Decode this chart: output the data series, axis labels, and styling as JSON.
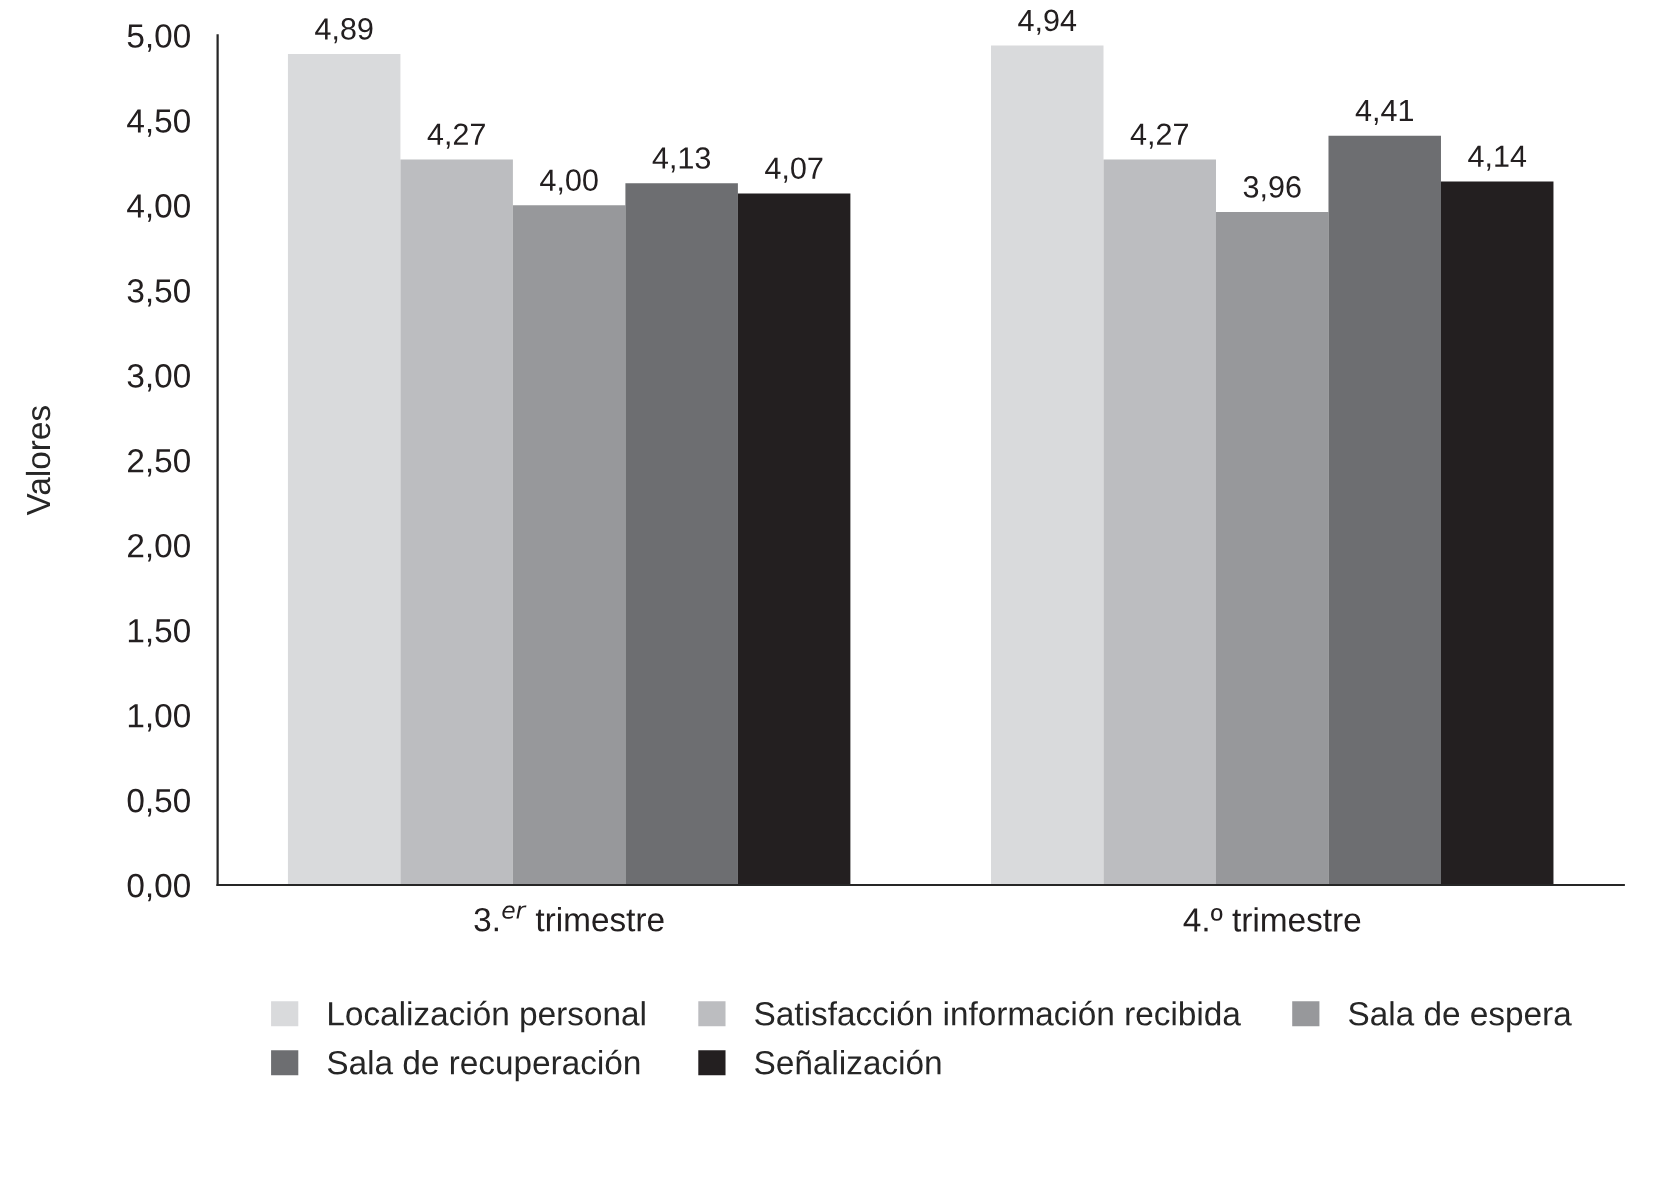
{
  "chart_data": {
    "type": "bar",
    "ylabel": "Valores",
    "categories": [
      "3.$^{er}$ trimestre",
      "4.º trimestre"
    ],
    "series": [
      {
        "name": "Localización personal",
        "color": "#d9dadc",
        "values": [
          4.89,
          4.94
        ],
        "value_labels": [
          "4,89",
          "4,94"
        ]
      },
      {
        "name": "Satisfacción información recibida",
        "color": "#bcbdc0",
        "values": [
          4.27,
          4.27
        ],
        "value_labels": [
          "4,27",
          "4,27"
        ]
      },
      {
        "name": "Sala de espera",
        "color": "#97989b",
        "values": [
          4.0,
          3.96
        ],
        "value_labels": [
          "4,00",
          "3,96"
        ]
      },
      {
        "name": "Sala de recuperación",
        "color": "#6d6e71",
        "values": [
          4.13,
          4.41
        ],
        "value_labels": [
          "4,13",
          "4,41"
        ]
      },
      {
        "name": "Señalización",
        "color": "#231f20",
        "values": [
          4.07,
          4.14
        ],
        "value_labels": [
          "4,07",
          "4,14"
        ]
      }
    ],
    "ylim": [
      0,
      5
    ],
    "yticks": [
      {
        "value": 0,
        "label": "0,00"
      },
      {
        "value": 0.5,
        "label": "0,50"
      },
      {
        "value": 1,
        "label": "1,00"
      },
      {
        "value": 1.5,
        "label": "1,50"
      },
      {
        "value": 2,
        "label": "2,00"
      },
      {
        "value": 2.5,
        "label": "2,50"
      },
      {
        "value": 3,
        "label": "3,00"
      },
      {
        "value": 3.5,
        "label": "3,50"
      },
      {
        "value": 4,
        "label": "4,00"
      },
      {
        "value": 4.5,
        "label": "4,50"
      },
      {
        "value": 5,
        "label": "5,00"
      }
    ],
    "grid": false,
    "legend": "bottom"
  }
}
